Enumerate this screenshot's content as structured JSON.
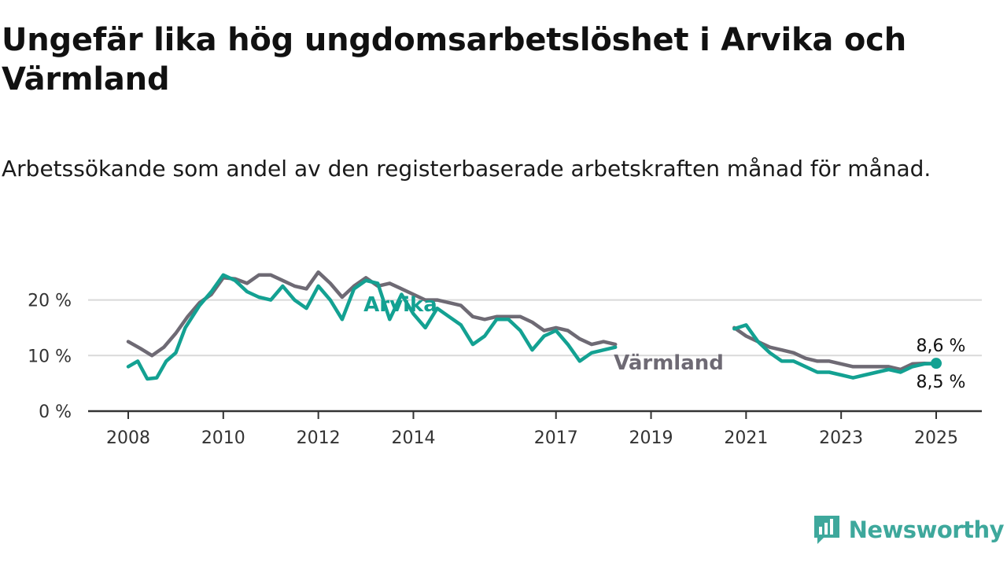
{
  "title": "Ungefär lika hög ungdomsarbetslöshet i Arvika och Värmland",
  "subtitle": "Arbetssökande som andel av den registerbaserade arbetskraften månad för månad.",
  "brand": {
    "name": "Newsworthy",
    "logo_icon": "newsworthy-chart-logo-icon",
    "color": "#3ea89c"
  },
  "chart_data": {
    "type": "line",
    "xlim": [
      2008,
      2025.17
    ],
    "ylim": [
      0,
      28
    ],
    "grid": true,
    "x_ticks": [
      {
        "value": 2008,
        "label": "2008"
      },
      {
        "value": 2010,
        "label": "2010"
      },
      {
        "value": 2012,
        "label": "2012"
      },
      {
        "value": 2014,
        "label": "2014"
      },
      {
        "value": 2017,
        "label": "2017"
      },
      {
        "value": 2019,
        "label": "2019"
      },
      {
        "value": 2021,
        "label": "2021"
      },
      {
        "value": 2023,
        "label": "2023"
      },
      {
        "value": 2025,
        "label": "2025"
      }
    ],
    "y_ticks": [
      {
        "value": 0,
        "label": "0 %"
      },
      {
        "value": 10,
        "label": "10 %"
      },
      {
        "value": 20,
        "label": "20 %"
      }
    ],
    "series": [
      {
        "name": "Värmland",
        "color": "#6e6a74",
        "end_label": "8,5 %",
        "points": [
          [
            2008.0,
            12.5
          ],
          [
            2008.25,
            11.3
          ],
          [
            2008.5,
            10.0
          ],
          [
            2008.75,
            11.5
          ],
          [
            2009.0,
            14.0
          ],
          [
            2009.25,
            17.0
          ],
          [
            2009.5,
            19.5
          ],
          [
            2009.75,
            21.0
          ],
          [
            2010.0,
            24.0
          ],
          [
            2010.25,
            23.8
          ],
          [
            2010.5,
            23.0
          ],
          [
            2010.75,
            24.5
          ],
          [
            2011.0,
            24.5
          ],
          [
            2011.25,
            23.5
          ],
          [
            2011.5,
            22.5
          ],
          [
            2011.75,
            22.0
          ],
          [
            2012.0,
            25.0
          ],
          [
            2012.25,
            23.0
          ],
          [
            2012.5,
            20.5
          ],
          [
            2012.75,
            22.5
          ],
          [
            2013.0,
            24.0
          ],
          [
            2013.25,
            22.5
          ],
          [
            2013.5,
            23.0
          ],
          [
            2013.75,
            22.0
          ],
          [
            2014.0,
            21.0
          ],
          [
            2014.25,
            20.0
          ],
          [
            2014.5,
            20.0
          ],
          [
            2014.75,
            19.5
          ],
          [
            2015.0,
            19.0
          ],
          [
            2015.25,
            17.0
          ],
          [
            2015.5,
            16.5
          ],
          [
            2015.75,
            17.0
          ],
          [
            2016.0,
            17.0
          ],
          [
            2016.25,
            17.0
          ],
          [
            2016.5,
            16.0
          ],
          [
            2016.75,
            14.5
          ],
          [
            2017.0,
            15.0
          ],
          [
            2017.25,
            14.5
          ],
          [
            2017.5,
            13.0
          ],
          [
            2017.75,
            12.0
          ],
          [
            2018.0,
            12.5
          ],
          [
            2018.25,
            12.0
          ],
          [
            2020.75,
            15.0
          ],
          [
            2021.0,
            13.5
          ],
          [
            2021.25,
            12.5
          ],
          [
            2021.5,
            11.5
          ],
          [
            2021.75,
            11.0
          ],
          [
            2022.0,
            10.5
          ],
          [
            2022.25,
            9.5
          ],
          [
            2022.5,
            9.0
          ],
          [
            2022.75,
            9.0
          ],
          [
            2023.0,
            8.5
          ],
          [
            2023.25,
            8.0
          ],
          [
            2023.5,
            8.0
          ],
          [
            2023.75,
            8.0
          ],
          [
            2024.0,
            8.0
          ],
          [
            2024.25,
            7.5
          ],
          [
            2024.5,
            8.5
          ],
          [
            2024.75,
            8.6
          ],
          [
            2025.0,
            8.5
          ]
        ]
      },
      {
        "name": "Arvika",
        "color": "#13a192",
        "end_label": "8,6 %",
        "points": [
          [
            2008.0,
            8.0
          ],
          [
            2008.2,
            9.0
          ],
          [
            2008.4,
            5.8
          ],
          [
            2008.6,
            6.0
          ],
          [
            2008.8,
            9.0
          ],
          [
            2009.0,
            10.5
          ],
          [
            2009.2,
            15.0
          ],
          [
            2009.5,
            19.0
          ],
          [
            2009.75,
            21.5
          ],
          [
            2010.0,
            24.5
          ],
          [
            2010.25,
            23.5
          ],
          [
            2010.5,
            21.5
          ],
          [
            2010.75,
            20.5
          ],
          [
            2011.0,
            20.0
          ],
          [
            2011.25,
            22.5
          ],
          [
            2011.5,
            20.0
          ],
          [
            2011.75,
            18.5
          ],
          [
            2012.0,
            22.5
          ],
          [
            2012.25,
            20.0
          ],
          [
            2012.5,
            16.5
          ],
          [
            2012.75,
            22.0
          ],
          [
            2013.0,
            23.5
          ],
          [
            2013.25,
            23.0
          ],
          [
            2013.5,
            16.5
          ],
          [
            2013.75,
            21.0
          ],
          [
            2014.0,
            17.5
          ],
          [
            2014.25,
            15.0
          ],
          [
            2014.5,
            18.5
          ],
          [
            2014.75,
            17.0
          ],
          [
            2015.0,
            15.5
          ],
          [
            2015.25,
            12.0
          ],
          [
            2015.5,
            13.5
          ],
          [
            2015.75,
            16.5
          ],
          [
            2016.0,
            16.5
          ],
          [
            2016.25,
            14.5
          ],
          [
            2016.5,
            11.0
          ],
          [
            2016.75,
            13.5
          ],
          [
            2017.0,
            14.5
          ],
          [
            2017.25,
            12.0
          ],
          [
            2017.5,
            9.0
          ],
          [
            2017.75,
            10.5
          ],
          [
            2018.0,
            11.0
          ],
          [
            2018.25,
            11.5
          ],
          [
            2020.75,
            14.8
          ],
          [
            2021.0,
            15.5
          ],
          [
            2021.25,
            12.5
          ],
          [
            2021.5,
            10.5
          ],
          [
            2021.75,
            9.0
          ],
          [
            2022.0,
            9.0
          ],
          [
            2022.25,
            8.0
          ],
          [
            2022.5,
            7.0
          ],
          [
            2022.75,
            7.0
          ],
          [
            2023.0,
            6.5
          ],
          [
            2023.25,
            6.0
          ],
          [
            2023.5,
            6.5
          ],
          [
            2023.75,
            7.0
          ],
          [
            2024.0,
            7.5
          ],
          [
            2024.25,
            7.0
          ],
          [
            2024.5,
            8.0
          ],
          [
            2024.75,
            8.5
          ],
          [
            2025.0,
            8.6
          ]
        ]
      }
    ]
  }
}
